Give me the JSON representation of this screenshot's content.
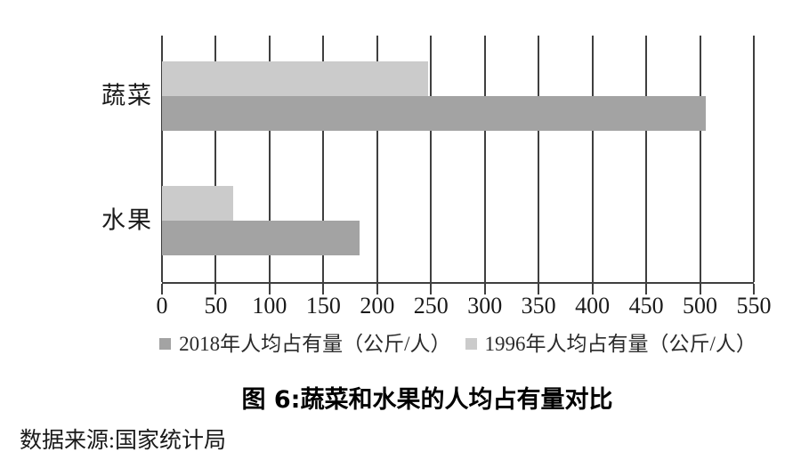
{
  "chart_data": {
    "type": "bar",
    "orientation": "horizontal",
    "title": "图 6:蔬菜和水果的人均占有量对比",
    "source": "数据来源:国家统计局",
    "categories": [
      "蔬菜",
      "水果"
    ],
    "series": [
      {
        "name": "2018年人均占有量（公斤/人）",
        "color": "#a3a3a3",
        "values": [
          505,
          184
        ]
      },
      {
        "name": "1996年人均占有量（公斤/人）",
        "color": "#cbcbcb",
        "values": [
          247,
          66
        ]
      }
    ],
    "xlim": [
      0,
      550
    ],
    "xticks": [
      0,
      50,
      100,
      150,
      200,
      250,
      300,
      350,
      400,
      450,
      500,
      550
    ],
    "grid": "vertical",
    "legend_position": "bottom",
    "colors": {
      "axis": "#3f3f3f",
      "series_2018": "#a3a3a3",
      "series_1996": "#cbcbcb",
      "text": "#1a1a1a",
      "background": "#ffffff"
    }
  }
}
